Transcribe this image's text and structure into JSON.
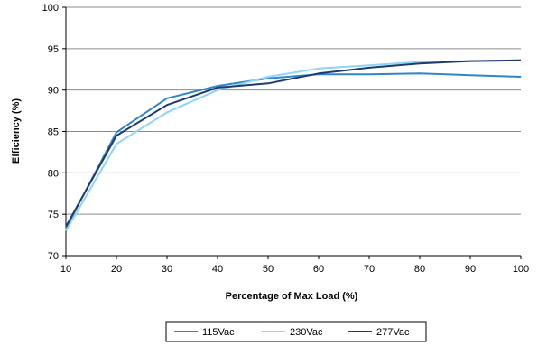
{
  "chart_data": {
    "type": "line",
    "title": "",
    "xlabel": "Percentage of Max Load (%)",
    "ylabel": "Efficiency (%)",
    "xlim": [
      10,
      100
    ],
    "ylim": [
      70,
      100
    ],
    "x_ticks": [
      10,
      20,
      30,
      40,
      50,
      60,
      70,
      80,
      90,
      100
    ],
    "y_ticks": [
      70,
      75,
      80,
      85,
      90,
      95,
      100
    ],
    "grid": "horizontal",
    "legend_position": "bottom",
    "series": [
      {
        "name": "115Vac",
        "color": "#2e86c8",
        "x": [
          10,
          20,
          30,
          40,
          50,
          60,
          70,
          80,
          90,
          100
        ],
        "y": [
          73.3,
          84.9,
          89.0,
          90.5,
          91.4,
          91.9,
          91.9,
          92.0,
          91.8,
          91.6
        ]
      },
      {
        "name": "230Vac",
        "color": "#8fd3f5",
        "x": [
          10,
          20,
          30,
          40,
          50,
          60,
          70,
          80,
          90,
          100
        ],
        "y": [
          73.0,
          83.5,
          87.3,
          90.0,
          91.6,
          92.6,
          93.0,
          93.4,
          93.5,
          93.6
        ]
      },
      {
        "name": "277Vac",
        "color": "#1f3b6e",
        "x": [
          10,
          20,
          30,
          40,
          50,
          60,
          70,
          80,
          90,
          100
        ],
        "y": [
          73.5,
          84.5,
          88.2,
          90.3,
          90.8,
          92.0,
          92.7,
          93.2,
          93.5,
          93.6
        ]
      }
    ]
  }
}
